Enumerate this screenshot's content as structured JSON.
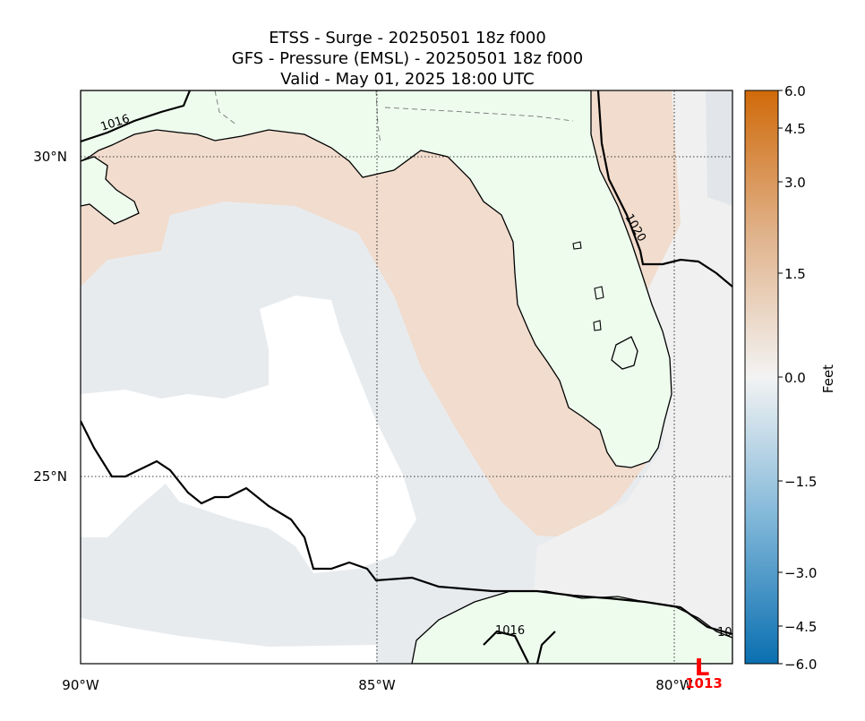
{
  "titles": {
    "line1": "ETSS - Surge - 20250501 18z f000",
    "line2": "GFS -  Pressure (EMSL) - 20250501 18z f000",
    "line3": "Valid - May 01, 2025 18:00 UTC"
  },
  "map": {
    "lat_labels": [
      "30°N",
      "25°N"
    ],
    "lon_labels": [
      "90°W",
      "85°W",
      "80°W"
    ],
    "isobar_labels": [
      "1016",
      "1020",
      "1016",
      "10"
    ],
    "low_center": {
      "symbol": "L",
      "value": "1013"
    }
  },
  "colorbar": {
    "label": "Feet",
    "ticks": [
      "6.0",
      "4.5",
      "3.0",
      "1.5",
      "0.0",
      "−1.5",
      "−3.0",
      "−4.5",
      "−6.0"
    ],
    "min": -6.0,
    "max": 6.0
  },
  "colors": {
    "land": "#eefcee",
    "surge_positive": "#f1dccd",
    "surge_neutral": "#e8ebee",
    "low_marker": "#ff0000"
  }
}
